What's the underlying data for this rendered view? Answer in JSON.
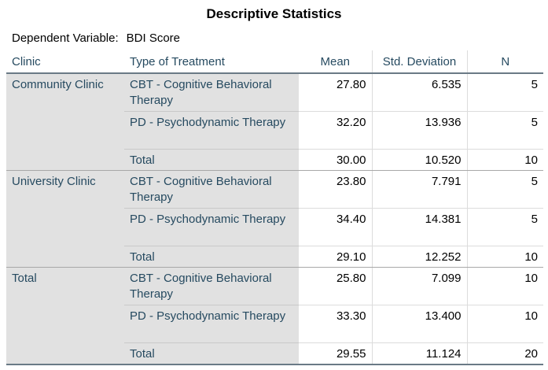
{
  "title": "Descriptive Statistics",
  "dependent_variable": {
    "label": "Dependent Variable:",
    "value": "BDI Score"
  },
  "columns": {
    "clinic": "Clinic",
    "treatment": "Type of Treatment",
    "mean": "Mean",
    "sd": "Std. Deviation",
    "n": "N"
  },
  "groups": [
    {
      "clinic": "Community Clinic",
      "rows": [
        {
          "treatment": "CBT - Cognitive Behavioral Therapy",
          "mean": "27.80",
          "sd": "6.535",
          "n": "5"
        },
        {
          "treatment": "PD - Psychodynamic Therapy",
          "mean": "32.20",
          "sd": "13.936",
          "n": "5"
        },
        {
          "treatment": "Total",
          "mean": "30.00",
          "sd": "10.520",
          "n": "10"
        }
      ]
    },
    {
      "clinic": "University Clinic",
      "rows": [
        {
          "treatment": "CBT - Cognitive Behavioral Therapy",
          "mean": "23.80",
          "sd": "7.791",
          "n": "5"
        },
        {
          "treatment": "PD - Psychodynamic Therapy",
          "mean": "34.40",
          "sd": "14.381",
          "n": "5"
        },
        {
          "treatment": "Total",
          "mean": "29.10",
          "sd": "12.252",
          "n": "10"
        }
      ]
    },
    {
      "clinic": "Total",
      "rows": [
        {
          "treatment": "CBT - Cognitive Behavioral Therapy",
          "mean": "25.80",
          "sd": "7.099",
          "n": "10"
        },
        {
          "treatment": "PD - Psychodynamic Therapy",
          "mean": "33.30",
          "sd": "13.400",
          "n": "10"
        },
        {
          "treatment": "Total",
          "mean": "29.55",
          "sd": "11.124",
          "n": "20"
        }
      ]
    }
  ]
}
